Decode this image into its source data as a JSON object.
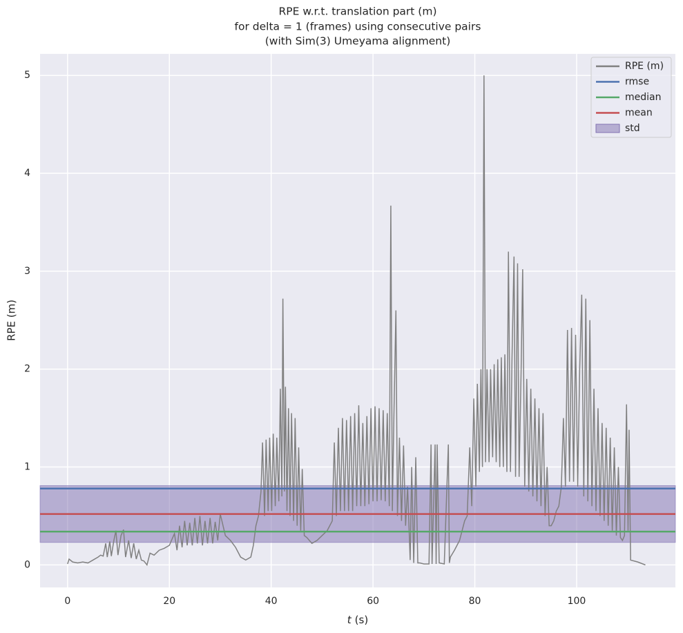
{
  "chart_data": {
    "type": "line",
    "title": [
      "RPE w.r.t. translation part (m)",
      "for delta = 1 (frames) using consecutive pairs",
      "(with Sim(3) Umeyama alignment)"
    ],
    "x_label_var": "t",
    "x_label_unit": "(s)",
    "y_label": "RPE (m)",
    "xlim": [
      -5.4,
      119.4
    ],
    "ylim": [
      -0.23,
      5.22
    ],
    "xticks": [
      0,
      20,
      40,
      60,
      80,
      100
    ],
    "yticks": [
      0,
      1,
      2,
      3,
      4,
      5
    ],
    "grid": true,
    "legend": "upper right",
    "x": [
      0,
      0.3,
      1,
      2,
      3,
      4,
      5,
      6,
      6.5,
      7,
      7.5,
      7.8,
      8.3,
      8.6,
      9.1,
      9.5,
      9.9,
      10.5,
      11.0,
      11.4,
      12,
      12.5,
      13,
      13.5,
      14,
      14.5,
      15,
      15.6,
      16.2,
      17,
      18,
      19,
      20,
      21,
      21.5,
      22,
      22.5,
      23,
      23.5,
      24,
      24.5,
      25,
      25.5,
      26,
      26.5,
      27,
      27.5,
      28,
      28.5,
      29,
      29.5,
      30,
      31,
      32,
      33,
      34,
      35,
      36,
      36.5,
      37,
      37.5,
      38,
      38.3,
      38.7,
      39,
      39.4,
      39.7,
      40.1,
      40.4,
      40.8,
      41.1,
      41.5,
      41.8,
      42.1,
      42.3,
      42.6,
      42.8,
      43.1,
      43.4,
      43.7,
      44,
      44.4,
      44.7,
      45.1,
      45.4,
      45.8,
      46.1,
      46.5,
      47,
      48,
      49,
      50,
      51,
      52,
      52.4,
      52.8,
      53.2,
      53.6,
      54,
      54.4,
      54.8,
      55.2,
      55.6,
      56,
      56.4,
      56.8,
      57.2,
      57.6,
      58,
      58.4,
      58.8,
      59.2,
      59.6,
      60,
      60.4,
      60.8,
      61.2,
      61.6,
      62,
      62.4,
      62.8,
      63.2,
      63.5,
      63.8,
      64.1,
      64.5,
      64.8,
      65.2,
      65.6,
      66,
      66.4,
      66.8,
      67.3,
      67.6,
      68,
      68.4,
      68.8,
      69.2,
      70,
      71,
      71.4,
      71.6,
      72.2,
      72.4,
      72.6,
      73,
      74,
      74.8,
      75,
      75.2,
      76,
      77,
      78,
      78.5,
      79,
      79.4,
      79.8,
      80.2,
      80.5,
      80.9,
      81.2,
      81.5,
      81.8,
      82.1,
      82.4,
      82.8,
      83.1,
      83.5,
      83.8,
      84.2,
      84.5,
      84.9,
      85.2,
      85.6,
      85.9,
      86.3,
      86.6,
      87,
      87.3,
      87.7,
      88,
      88.4,
      88.7,
      89.1,
      89.4,
      89.8,
      90.2,
      90.6,
      91,
      91.4,
      91.8,
      92.2,
      92.6,
      93,
      93.4,
      93.8,
      94.2,
      94.6,
      95,
      95.5,
      96,
      96.5,
      97,
      97.4,
      97.8,
      98.2,
      98.6,
      99,
      99.4,
      99.8,
      100.2,
      100.6,
      101,
      101.4,
      101.8,
      102.2,
      102.6,
      103,
      103.4,
      103.8,
      104.2,
      104.6,
      105,
      105.4,
      105.8,
      106.2,
      106.6,
      107,
      107.4,
      107.8,
      108.2,
      108.6,
      109,
      109.4,
      109.8,
      110.1,
      110.3,
      110.6,
      112,
      113.5
    ],
    "series": [
      {
        "name": "RPE (m)",
        "color": "#808080",
        "values": [
          0.01,
          0.06,
          0.03,
          0.02,
          0.03,
          0.02,
          0.05,
          0.08,
          0.1,
          0.09,
          0.22,
          0.08,
          0.24,
          0.09,
          0.25,
          0.35,
          0.1,
          0.3,
          0.36,
          0.08,
          0.25,
          0.07,
          0.22,
          0.06,
          0.15,
          0.05,
          0.04,
          0.0,
          0.12,
          0.1,
          0.15,
          0.17,
          0.2,
          0.32,
          0.15,
          0.4,
          0.18,
          0.45,
          0.2,
          0.43,
          0.2,
          0.48,
          0.22,
          0.5,
          0.2,
          0.45,
          0.22,
          0.48,
          0.22,
          0.44,
          0.25,
          0.52,
          0.3,
          0.25,
          0.18,
          0.08,
          0.05,
          0.08,
          0.2,
          0.4,
          0.5,
          0.75,
          1.25,
          0.5,
          1.28,
          0.55,
          1.3,
          0.55,
          1.34,
          0.6,
          1.3,
          0.65,
          1.8,
          0.7,
          2.72,
          0.75,
          1.82,
          0.55,
          1.6,
          0.5,
          1.55,
          0.45,
          1.5,
          0.4,
          1.2,
          0.35,
          0.98,
          0.3,
          0.28,
          0.22,
          0.25,
          0.3,
          0.35,
          0.45,
          1.25,
          0.5,
          1.4,
          0.55,
          1.5,
          0.55,
          1.48,
          0.55,
          1.52,
          0.55,
          1.55,
          0.6,
          1.63,
          0.6,
          1.45,
          0.6,
          1.52,
          0.62,
          1.6,
          0.65,
          1.62,
          0.65,
          1.6,
          0.66,
          1.58,
          0.65,
          1.55,
          0.6,
          3.67,
          0.55,
          1.5,
          2.6,
          0.5,
          1.3,
          0.45,
          1.22,
          0.4,
          0.8,
          0.05,
          1.0,
          0.02,
          1.1,
          0.02,
          0.02,
          0.01,
          0.01,
          1.23,
          0.01,
          1.23,
          0.01,
          1.23,
          0.02,
          0.01,
          1.23,
          0.02,
          0.08,
          0.15,
          0.25,
          0.45,
          0.5,
          1.2,
          0.6,
          1.7,
          0.8,
          1.85,
          0.95,
          2.0,
          1.0,
          5.0,
          1.05,
          2.0,
          1.05,
          2.0,
          1.1,
          2.05,
          1.05,
          2.1,
          1.0,
          2.12,
          1.0,
          2.15,
          0.95,
          3.2,
          0.95,
          2.1,
          3.15,
          0.9,
          3.08,
          0.9,
          2.0,
          3.02,
          0.8,
          1.9,
          0.75,
          1.8,
          0.7,
          1.7,
          0.65,
          1.6,
          0.6,
          1.55,
          0.5,
          1.0,
          0.4,
          0.4,
          0.45,
          0.55,
          0.6,
          0.8,
          1.5,
          0.8,
          2.4,
          0.85,
          2.42,
          0.85,
          2.35,
          0.8,
          2.0,
          2.76,
          0.7,
          2.72,
          0.65,
          2.5,
          0.6,
          1.8,
          0.55,
          1.6,
          0.5,
          1.45,
          0.45,
          1.4,
          0.4,
          1.3,
          0.35,
          1.2,
          0.3,
          1.0,
          0.28,
          0.25,
          0.3,
          1.64,
          0.35,
          1.38,
          0.05,
          0.03,
          0.0
        ]
      }
    ],
    "stats": [
      {
        "name": "rmse",
        "color": "#4c72b0",
        "value": 0.78
      },
      {
        "name": "median",
        "color": "#55a868",
        "value": 0.34
      },
      {
        "name": "mean",
        "color": "#c44e52",
        "value": 0.52
      }
    ],
    "std": {
      "name": "std",
      "color": "#8172b2",
      "value": 0.29
    }
  }
}
